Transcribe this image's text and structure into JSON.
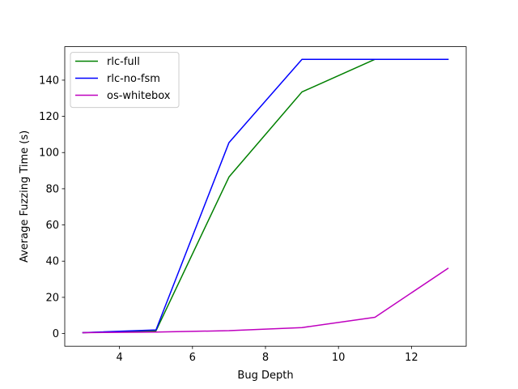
{
  "chart_data": {
    "type": "line",
    "xlabel": "Bug Depth",
    "ylabel": "Average Fuzzing Time (s)",
    "xlim": [
      2.5,
      13.5
    ],
    "ylim": [
      -7,
      158.5
    ],
    "xticks": [
      4,
      6,
      8,
      10,
      12
    ],
    "yticks": [
      0,
      20,
      40,
      60,
      80,
      100,
      120,
      140
    ],
    "grid": false,
    "legend_position": "top-left",
    "series": [
      {
        "name": "rlc-full",
        "color": "#008000",
        "x": [
          3,
          5,
          7,
          9,
          11,
          13
        ],
        "y": [
          0.5,
          1.5,
          86.5,
          133.5,
          151.5,
          151.5
        ]
      },
      {
        "name": "rlc-no-fsm",
        "color": "#0000ff",
        "x": [
          3,
          5,
          7,
          9,
          11,
          13
        ],
        "y": [
          0.5,
          2.0,
          105.5,
          151.5,
          151.5,
          151.5
        ]
      },
      {
        "name": "os-whitebox",
        "color": "#bf00bf",
        "x": [
          3,
          5,
          7,
          9,
          11,
          13
        ],
        "y": [
          0.5,
          0.8,
          1.6,
          3.3,
          9.0,
          36.0
        ]
      }
    ]
  }
}
